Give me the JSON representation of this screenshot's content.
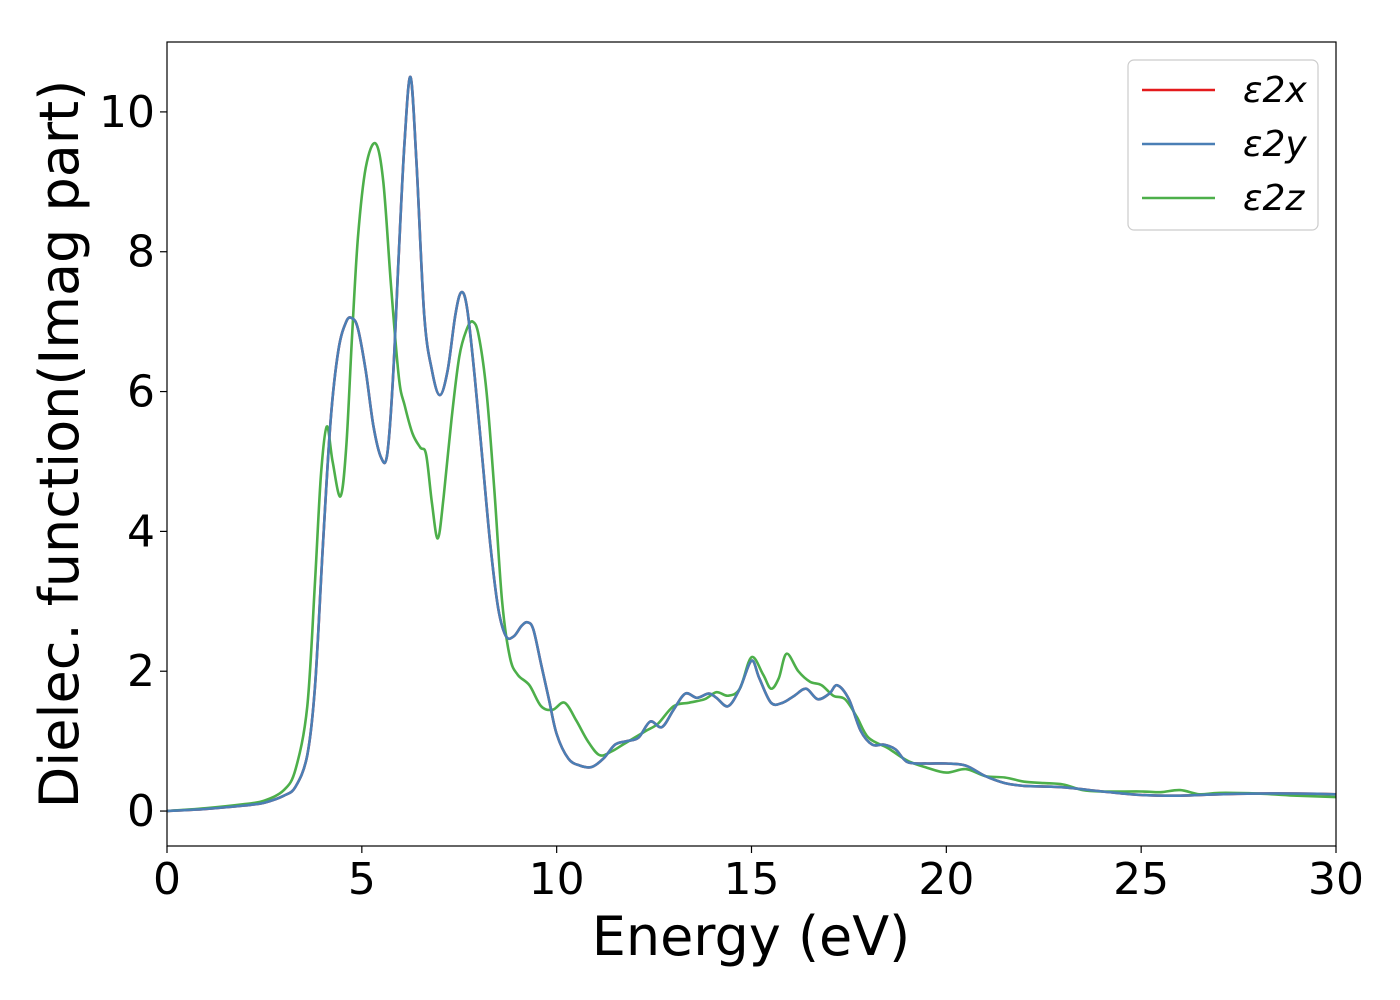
{
  "chart_data": {
    "type": "line",
    "xlabel": "Energy (eV)",
    "ylabel": "Dielec. function(Imag part)",
    "xlim": [
      0,
      30
    ],
    "ylim": [
      -0.5,
      11
    ],
    "xticks": [
      0,
      5,
      10,
      15,
      20,
      25,
      30
    ],
    "yticks": [
      0,
      2,
      4,
      6,
      8,
      10
    ],
    "grid": false,
    "legend_position": "top-right",
    "series": [
      {
        "name": "ε2x",
        "color": "#e41a1c",
        "x": [
          0,
          1,
          2,
          2.5,
          3,
          3.3,
          3.6,
          3.8,
          4.0,
          4.2,
          4.4,
          4.6,
          4.75,
          4.9,
          5.1,
          5.3,
          5.5,
          5.65,
          5.8,
          5.95,
          6.1,
          6.25,
          6.4,
          6.6,
          6.8,
          7.0,
          7.2,
          7.4,
          7.55,
          7.7,
          7.9,
          8.1,
          8.3,
          8.5,
          8.7,
          8.9,
          9.1,
          9.25,
          9.4,
          9.6,
          9.8,
          10.0,
          10.3,
          10.6,
          10.9,
          11.2,
          11.5,
          11.8,
          12.1,
          12.4,
          12.7,
          13.0,
          13.3,
          13.6,
          13.9,
          14.1,
          14.4,
          14.7,
          15.0,
          15.2,
          15.5,
          15.8,
          16.1,
          16.4,
          16.7,
          17.0,
          17.2,
          17.5,
          17.8,
          18.1,
          18.4,
          18.7,
          19.0,
          19.5,
          20.0,
          20.5,
          21.0,
          21.5,
          22.0,
          23.0,
          24.0,
          25.0,
          26.0,
          27.0,
          28.0,
          29.0,
          30.0
        ],
        "values": [
          0.0,
          0.03,
          0.08,
          0.12,
          0.22,
          0.35,
          0.8,
          1.8,
          3.8,
          5.6,
          6.6,
          7.0,
          7.05,
          6.9,
          6.3,
          5.5,
          5.05,
          5.1,
          6.2,
          8.0,
          9.6,
          10.5,
          9.3,
          7.1,
          6.3,
          5.95,
          6.3,
          7.1,
          7.42,
          7.2,
          6.2,
          5.0,
          3.8,
          2.9,
          2.5,
          2.5,
          2.65,
          2.7,
          2.6,
          2.1,
          1.6,
          1.1,
          0.75,
          0.65,
          0.63,
          0.75,
          0.95,
          1.0,
          1.05,
          1.28,
          1.2,
          1.45,
          1.68,
          1.62,
          1.68,
          1.62,
          1.5,
          1.75,
          2.15,
          1.9,
          1.55,
          1.55,
          1.65,
          1.75,
          1.6,
          1.68,
          1.8,
          1.6,
          1.15,
          0.95,
          0.95,
          0.88,
          0.7,
          0.68,
          0.68,
          0.65,
          0.5,
          0.4,
          0.36,
          0.34,
          0.28,
          0.23,
          0.22,
          0.24,
          0.25,
          0.25,
          0.24
        ]
      },
      {
        "name": "ε2y",
        "color": "#4a7fb5",
        "x": [
          0,
          1,
          2,
          2.5,
          3,
          3.3,
          3.6,
          3.8,
          4.0,
          4.2,
          4.4,
          4.6,
          4.75,
          4.9,
          5.1,
          5.3,
          5.5,
          5.65,
          5.8,
          5.95,
          6.1,
          6.25,
          6.4,
          6.6,
          6.8,
          7.0,
          7.2,
          7.4,
          7.55,
          7.7,
          7.9,
          8.1,
          8.3,
          8.5,
          8.7,
          8.9,
          9.1,
          9.25,
          9.4,
          9.6,
          9.8,
          10.0,
          10.3,
          10.6,
          10.9,
          11.2,
          11.5,
          11.8,
          12.1,
          12.4,
          12.7,
          13.0,
          13.3,
          13.6,
          13.9,
          14.1,
          14.4,
          14.7,
          15.0,
          15.2,
          15.5,
          15.8,
          16.1,
          16.4,
          16.7,
          17.0,
          17.2,
          17.5,
          17.8,
          18.1,
          18.4,
          18.7,
          19.0,
          19.5,
          20.0,
          20.5,
          21.0,
          21.5,
          22.0,
          23.0,
          24.0,
          25.0,
          26.0,
          27.0,
          28.0,
          29.0,
          30.0
        ],
        "values": [
          0.0,
          0.03,
          0.08,
          0.12,
          0.22,
          0.35,
          0.8,
          1.8,
          3.8,
          5.6,
          6.6,
          7.0,
          7.05,
          6.9,
          6.3,
          5.5,
          5.05,
          5.1,
          6.2,
          8.0,
          9.6,
          10.5,
          9.3,
          7.1,
          6.3,
          5.95,
          6.3,
          7.1,
          7.42,
          7.2,
          6.2,
          5.0,
          3.8,
          2.9,
          2.5,
          2.5,
          2.65,
          2.7,
          2.6,
          2.1,
          1.6,
          1.1,
          0.75,
          0.65,
          0.63,
          0.75,
          0.95,
          1.0,
          1.05,
          1.28,
          1.2,
          1.45,
          1.68,
          1.62,
          1.68,
          1.62,
          1.5,
          1.75,
          2.15,
          1.9,
          1.55,
          1.55,
          1.65,
          1.75,
          1.6,
          1.68,
          1.8,
          1.6,
          1.15,
          0.95,
          0.95,
          0.88,
          0.7,
          0.68,
          0.68,
          0.65,
          0.5,
          0.4,
          0.36,
          0.34,
          0.28,
          0.23,
          0.22,
          0.24,
          0.25,
          0.25,
          0.24
        ]
      },
      {
        "name": "ε2z",
        "color": "#4daf4a",
        "x": [
          0,
          1,
          2,
          2.5,
          3,
          3.3,
          3.6,
          3.8,
          3.95,
          4.1,
          4.25,
          4.45,
          4.6,
          4.75,
          4.9,
          5.1,
          5.35,
          5.55,
          5.75,
          5.95,
          6.1,
          6.3,
          6.5,
          6.65,
          6.8,
          6.95,
          7.1,
          7.3,
          7.5,
          7.7,
          7.85,
          8.0,
          8.2,
          8.4,
          8.6,
          8.8,
          9.0,
          9.3,
          9.6,
          9.9,
          10.2,
          10.5,
          10.8,
          11.1,
          11.4,
          11.7,
          12.0,
          12.3,
          12.6,
          13.0,
          13.4,
          13.8,
          14.1,
          14.4,
          14.7,
          15.0,
          15.3,
          15.5,
          15.7,
          15.9,
          16.2,
          16.5,
          16.8,
          17.1,
          17.4,
          17.7,
          18.0,
          18.5,
          19.0,
          19.5,
          20.0,
          20.5,
          21.0,
          21.5,
          22.0,
          22.5,
          23.0,
          23.5,
          24.0,
          25.0,
          25.5,
          26.0,
          26.5,
          27.0,
          28.0,
          29.0,
          30.0
        ],
        "values": [
          0.0,
          0.04,
          0.1,
          0.15,
          0.3,
          0.6,
          1.5,
          3.3,
          4.8,
          5.5,
          5.0,
          4.5,
          5.2,
          6.8,
          8.2,
          9.2,
          9.55,
          9.0,
          7.5,
          6.2,
          5.8,
          5.4,
          5.2,
          5.1,
          4.4,
          3.9,
          4.5,
          5.6,
          6.5,
          6.9,
          7.0,
          6.8,
          6.0,
          4.6,
          3.0,
          2.2,
          1.95,
          1.8,
          1.5,
          1.45,
          1.55,
          1.3,
          1.0,
          0.8,
          0.85,
          0.95,
          1.05,
          1.15,
          1.25,
          1.5,
          1.55,
          1.6,
          1.7,
          1.65,
          1.75,
          2.2,
          1.95,
          1.75,
          1.9,
          2.25,
          2.0,
          1.85,
          1.8,
          1.65,
          1.6,
          1.35,
          1.05,
          0.9,
          0.72,
          0.62,
          0.55,
          0.6,
          0.5,
          0.48,
          0.42,
          0.4,
          0.38,
          0.3,
          0.28,
          0.28,
          0.27,
          0.3,
          0.24,
          0.26,
          0.25,
          0.22,
          0.2
        ]
      }
    ]
  }
}
